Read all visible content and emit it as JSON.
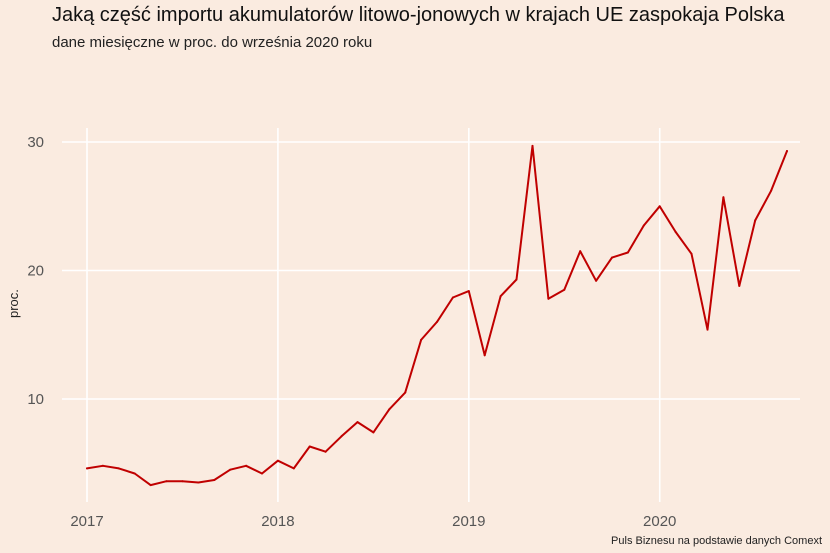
{
  "chart_data": {
    "type": "line",
    "title": "Jaką część importu akumulatorów litowo-jonowych w krajach UE zaspokaja Polska",
    "subtitle": "dane miesięczne w proc. do września 2020 roku",
    "xlabel": "",
    "ylabel": "proc.",
    "caption": "Puls Biznesu na podstawie danych Comext",
    "grid": true,
    "legend": "none",
    "line_color": "#c00000",
    "background": "#faebe0",
    "xlim": [
      "2017-01",
      "2020-09"
    ],
    "ylim": [
      3,
      30
    ],
    "x_ticks": [
      "2017",
      "2018",
      "2019",
      "2020"
    ],
    "y_ticks": [
      "10",
      "20",
      "30"
    ],
    "series": [
      {
        "x": [
          "2017-01",
          "2017-02",
          "2017-03",
          "2017-04",
          "2017-05",
          "2017-06",
          "2017-07",
          "2017-08",
          "2017-09",
          "2017-10",
          "2017-11",
          "2017-12",
          "2018-01",
          "2018-02",
          "2018-03",
          "2018-04",
          "2018-05",
          "2018-06",
          "2018-07",
          "2018-08",
          "2018-09",
          "2018-10",
          "2018-11",
          "2018-12",
          "2019-01",
          "2019-02",
          "2019-03",
          "2019-04",
          "2019-05",
          "2019-06",
          "2019-07",
          "2019-08",
          "2019-09",
          "2019-10",
          "2019-11",
          "2019-12",
          "2020-01",
          "2020-02",
          "2020-03",
          "2020-04",
          "2020-05",
          "2020-06",
          "2020-07",
          "2020-08",
          "2020-09"
        ],
        "values": [
          4.6,
          4.8,
          4.6,
          4.2,
          3.3,
          3.6,
          3.6,
          3.5,
          3.7,
          4.5,
          4.8,
          4.2,
          5.2,
          4.6,
          6.3,
          5.9,
          7.1,
          8.2,
          7.4,
          9.2,
          10.5,
          14.6,
          16.0,
          17.9,
          18.4,
          13.4,
          18.0,
          19.3,
          29.7,
          17.8,
          18.5,
          21.5,
          19.2,
          21.0,
          21.4,
          23.5,
          25.0,
          23.0,
          21.3,
          15.4,
          25.7,
          18.8,
          23.9,
          26.2,
          29.3
        ]
      }
    ]
  }
}
